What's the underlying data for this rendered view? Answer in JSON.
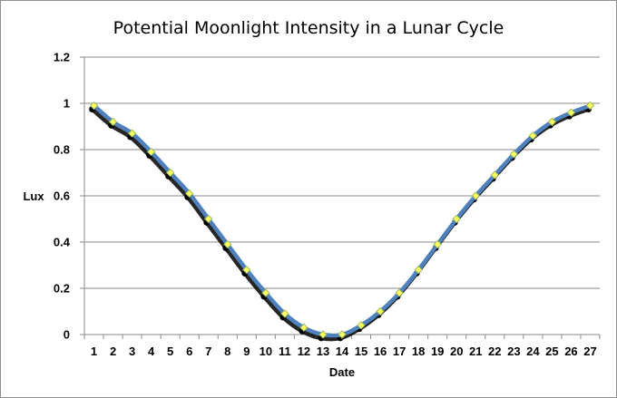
{
  "chart_data": {
    "type": "line",
    "title": "Potential Moonlight Intensity in a Lunar Cycle",
    "xlabel": "Date",
    "ylabel": "Lux",
    "categories": [
      "1",
      "2",
      "3",
      "4",
      "5",
      "6",
      "7",
      "8",
      "9",
      "10",
      "11",
      "12",
      "13",
      "14",
      "15",
      "16",
      "17",
      "18",
      "19",
      "20",
      "21",
      "22",
      "23",
      "24",
      "25",
      "26",
      "27"
    ],
    "series": [
      {
        "values": [
          0.99,
          0.92,
          0.87,
          0.79,
          0.7,
          0.61,
          0.5,
          0.39,
          0.28,
          0.18,
          0.09,
          0.03,
          0.0,
          0.0,
          0.04,
          0.1,
          0.18,
          0.28,
          0.39,
          0.5,
          0.6,
          0.69,
          0.78,
          0.86,
          0.92,
          0.96,
          0.99
        ]
      }
    ],
    "ylim": [
      0,
      1.2
    ],
    "yticks": [
      "0",
      "0.2",
      "0.4",
      "0.6",
      "0.8",
      "1",
      "1.2"
    ],
    "grid": true,
    "legend": "none",
    "colors": {
      "line": "#4f81bd",
      "marker_fill": "#ffff66",
      "marker_stroke": "#9bbb59",
      "shadow": "#000000",
      "grid": "#8a8a8a"
    }
  }
}
